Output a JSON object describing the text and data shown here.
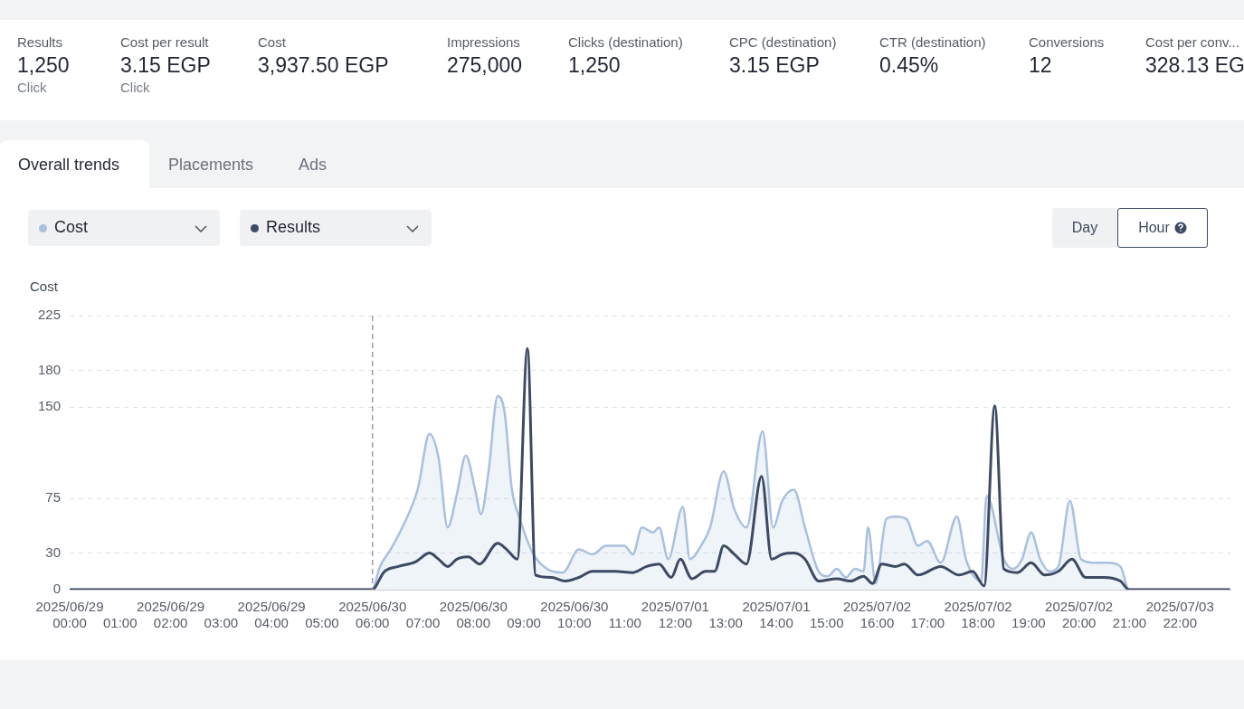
{
  "chart_data": [
    {
      "type": "other",
      "annotations": [
        "Results\n1,250\nClick",
        "Cost per result\n3.15 EGP\nClick",
        "Cost\n3,937.50 EGP",
        "Impressions\n275,000",
        "Clicks (destination)\n1,250",
        "CPC (destination)\n3.15 EGP",
        "CTR (destination)\n0.45%",
        "Conversions\n12",
        "Cost per conv...\n328.13 EG"
      ]
    },
    {
      "type": "other",
      "annotations": [
        "Overall trends",
        "Placements",
        "Ads"
      ]
    },
    {
      "type": "line",
      "ylabel": "Cost",
      "legend": "top left",
      "grid": "y",
      "marker": "none",
      "line_style": "solid",
      "annotations": [
        "Day",
        "Hour"
      ],
      "xlim": [
        0,
        23
      ],
      "xticks": [
        {
          "value": 0,
          "label": "2025/06/29 00:00"
        },
        {
          "value": 1,
          "label": "01:00"
        },
        {
          "value": 2,
          "label": "2025/06/29 02:00"
        },
        {
          "value": 3,
          "label": "03:00"
        },
        {
          "value": 4,
          "label": "2025/06/29 04:00"
        },
        {
          "value": 5,
          "label": "05:00"
        },
        {
          "value": 6,
          "label": "2025/06/30 06:00"
        },
        {
          "value": 7,
          "label": "07:00"
        },
        {
          "value": 8,
          "label": "2025/06/30 08:00"
        },
        {
          "value": 9,
          "label": "09:00"
        },
        {
          "value": 10,
          "label": "2025/06/30 10:00"
        },
        {
          "value": 11,
          "label": "11:00"
        },
        {
          "value": 12,
          "label": "2025/07/01 12:00"
        },
        {
          "value": 13,
          "label": "13:00"
        },
        {
          "value": 14,
          "label": "2025/07/01 14:00"
        },
        {
          "value": 15,
          "label": "15:00"
        },
        {
          "value": 16,
          "label": "2025/07/02 16:00"
        },
        {
          "value": 17,
          "label": "17:00"
        },
        {
          "value": 18,
          "label": "2025/07/02 18:00"
        },
        {
          "value": 19,
          "label": "19:00"
        },
        {
          "value": 20,
          "label": "2025/07/02 20:00"
        },
        {
          "value": 21,
          "label": "21:00"
        },
        {
          "value": 22,
          "label": "2025/07/03 22:00"
        }
      ],
      "ylim": [
        0,
        225
      ],
      "yticks": [
        0,
        30,
        75,
        150,
        180,
        225
      ],
      "ref_lines": [
        {
          "axis": "x",
          "value": 6,
          "line_style": "dashed",
          "color": "#9aa0a8"
        }
      ],
      "series": [
        {
          "name": "Cost",
          "type": "area",
          "color": "#a9c0de",
          "x": [
            0,
            5.99,
            6.15,
            6.36,
            6.59,
            6.9,
            7.13,
            7.31,
            7.49,
            7.67,
            7.85,
            8.03,
            8.15,
            8.3,
            8.48,
            8.62,
            8.76,
            8.92,
            9.19,
            9.46,
            9.77,
            10.09,
            10.36,
            10.63,
            10.99,
            11.16,
            11.34,
            11.56,
            11.68,
            11.86,
            12.15,
            12.29,
            12.51,
            12.69,
            12.96,
            13.17,
            13.41,
            13.73,
            13.94,
            14.12,
            14.35,
            14.57,
            14.84,
            15.02,
            15.2,
            15.38,
            15.56,
            15.73,
            15.82,
            15.97,
            16.18,
            16.36,
            16.58,
            16.81,
            16.99,
            17.26,
            17.58,
            17.76,
            18.06,
            18.17,
            18.51,
            18.69,
            18.87,
            19.05,
            19.23,
            19.41,
            19.59,
            19.82,
            20.04,
            20.3,
            20.57,
            20.82,
            20.99,
            22.99
          ],
          "values": [
            0,
            0,
            19,
            33,
            51,
            83,
            128,
            108,
            51,
            78,
            110,
            83,
            62,
            97,
            159,
            145,
            83,
            58,
            29,
            17,
            14,
            33,
            29,
            36,
            36,
            29,
            51,
            47,
            51,
            25,
            68,
            25,
            36,
            51,
            97,
            66,
            51,
            130,
            51,
            73,
            82,
            51,
            15,
            11,
            17,
            10,
            17,
            15,
            51,
            5,
            58,
            60,
            58,
            36,
            40,
            22,
            60,
            25,
            7,
            77,
            25,
            17,
            25,
            47,
            25,
            15,
            19,
            73,
            25,
            22,
            22,
            19,
            0,
            0
          ]
        },
        {
          "name": "Results",
          "type": "line",
          "color": "#3d4a63",
          "x": [
            0,
            5.99,
            6.24,
            6.51,
            6.86,
            7.13,
            7.31,
            7.49,
            7.67,
            7.9,
            8.12,
            8.48,
            8.66,
            8.87,
            9.07,
            9.23,
            9.55,
            9.82,
            10.09,
            10.36,
            10.81,
            11.16,
            11.43,
            11.68,
            11.92,
            12.1,
            12.33,
            12.6,
            12.78,
            12.96,
            13.17,
            13.41,
            13.71,
            13.91,
            14.12,
            14.35,
            14.57,
            14.84,
            15.2,
            15.47,
            15.73,
            15.91,
            16.09,
            16.36,
            16.54,
            16.81,
            17.26,
            17.62,
            17.89,
            18.12,
            18.33,
            18.51,
            18.78,
            19.05,
            19.32,
            19.59,
            19.86,
            20.13,
            20.48,
            20.82,
            20.99,
            22.99
          ],
          "values": [
            0,
            0,
            15,
            19,
            23,
            30,
            25,
            19,
            25,
            27,
            21,
            38,
            33,
            25,
            198,
            12,
            10,
            7,
            10,
            15,
            15,
            14,
            19,
            21,
            10,
            25,
            9,
            15,
            15,
            36,
            29,
            21,
            93,
            25,
            29,
            30,
            25,
            7,
            9,
            7,
            11,
            5,
            21,
            19,
            21,
            12,
            19,
            12,
            15,
            3,
            151,
            17,
            14,
            22,
            12,
            15,
            25,
            10,
            10,
            7,
            0,
            0
          ]
        }
      ]
    }
  ]
}
